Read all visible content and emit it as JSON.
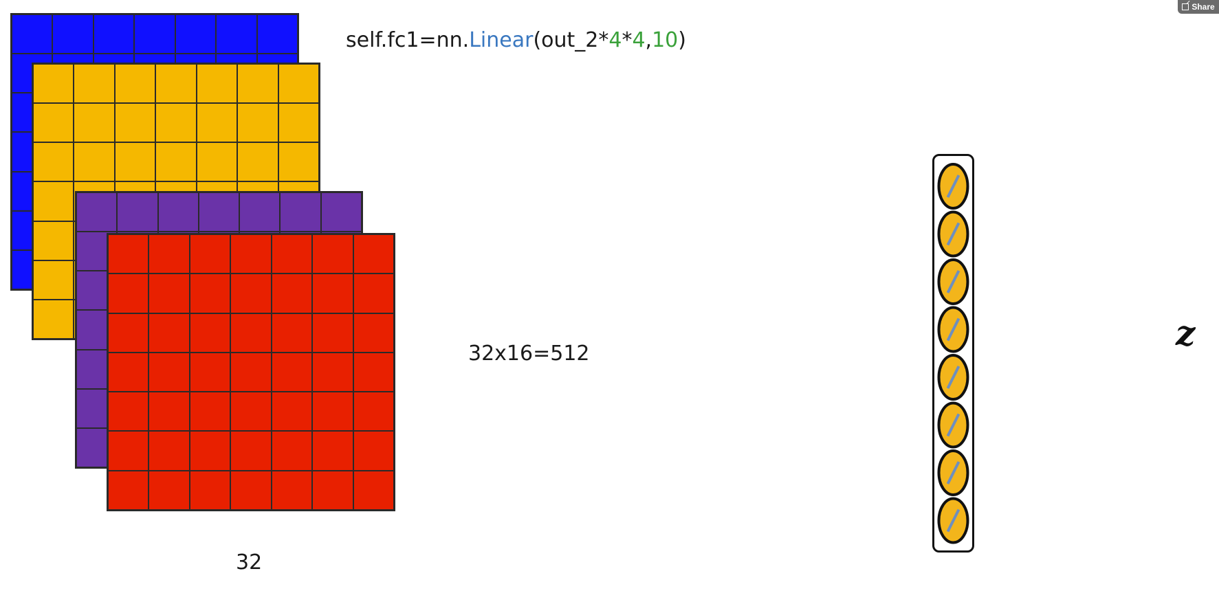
{
  "code": {
    "prefix": "self.fc1=nn.",
    "func": "Linear",
    "args_open": "(out_2*",
    "num1": "4",
    "star": "*",
    "num2": "4",
    "comma": ",",
    "num3": "10",
    "args_close": ")"
  },
  "calc_label": "32x16=512",
  "bottom_label": "32",
  "output_symbol": "z",
  "share_button": {
    "label": "Share",
    "icon": "share-icon"
  },
  "colors": {
    "blue": "#1010ff",
    "yellow": "#f5b800",
    "purple": "#6a33a8",
    "red": "#e82000",
    "neuron_fill": "#f3b51b",
    "neuron_stroke_inner": "#6e8fbf",
    "code_keyword": "#3a78c0",
    "code_number": "#3aa13a"
  },
  "feature_maps": [
    {
      "name": "blue",
      "rows": 7,
      "cols": 7
    },
    {
      "name": "yellow",
      "rows": 7,
      "cols": 7
    },
    {
      "name": "purple",
      "rows": 7,
      "cols": 7
    },
    {
      "name": "red",
      "rows": 7,
      "cols": 7
    }
  ],
  "neuron_count": 8
}
